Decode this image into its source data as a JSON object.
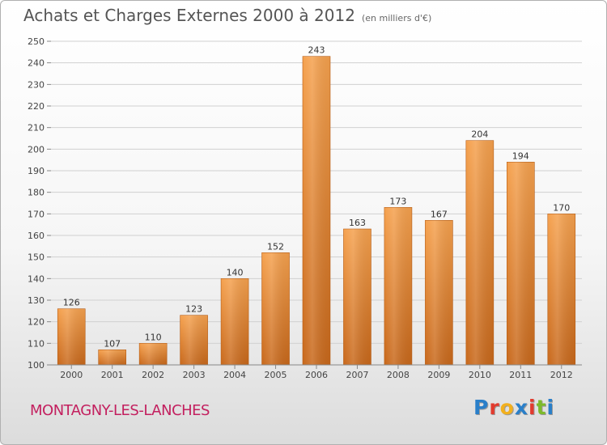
{
  "header": {
    "title": "Achats et Charges Externes 2000 à 2012",
    "subtitle": "(en milliers d'€)"
  },
  "footer": {
    "commune": "MONTAGNY-LES-LANCHES",
    "logo": "Proxiti",
    "logo_colors": [
      "#2a7fc9",
      "#e23b2e",
      "#f2b01e",
      "#2a7fc9",
      "#e23b2e",
      "#7dba2b",
      "#2a7fc9"
    ]
  },
  "colors": {
    "bar_light": "#f5a14e",
    "bar_dark": "#c8681b",
    "grid": "#d0d0d0"
  },
  "chart_data": {
    "type": "bar",
    "title": "Achats et Charges Externes 2000 à 2012",
    "subtitle": "(en milliers d'€)",
    "categories": [
      "2000",
      "2001",
      "2002",
      "2003",
      "2004",
      "2005",
      "2006",
      "2007",
      "2008",
      "2009",
      "2010",
      "2011",
      "2012"
    ],
    "values": [
      126,
      107,
      110,
      123,
      140,
      152,
      243,
      163,
      173,
      167,
      204,
      194,
      170
    ],
    "ylim": [
      100,
      250
    ],
    "yticks": [
      100,
      110,
      120,
      130,
      140,
      150,
      160,
      170,
      180,
      190,
      200,
      210,
      220,
      230,
      240,
      250
    ],
    "grid": true,
    "xlabel": "",
    "ylabel": ""
  }
}
